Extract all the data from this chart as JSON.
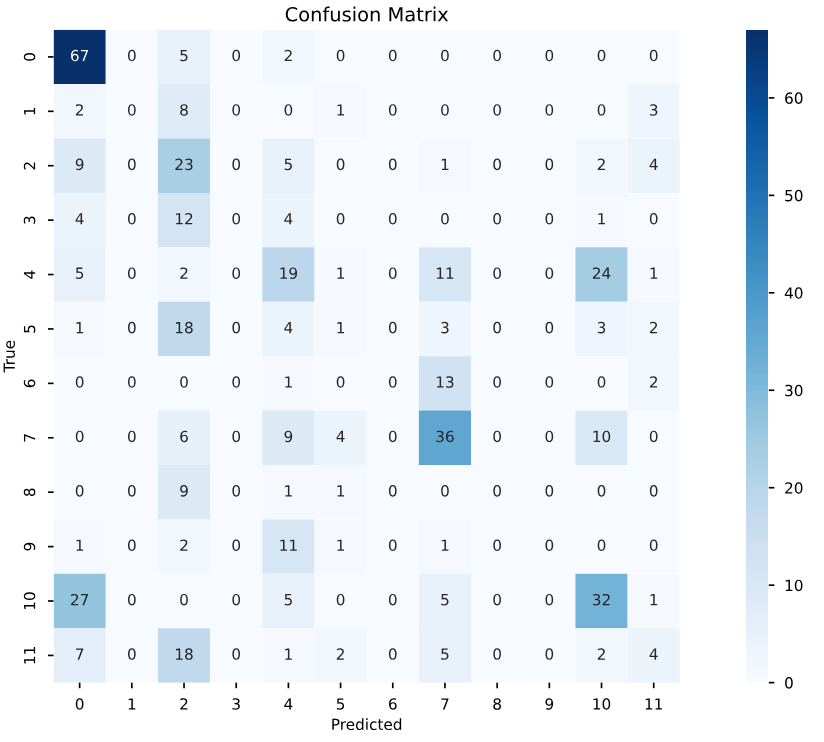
{
  "chart_data": {
    "type": "heatmap",
    "title": "Confusion Matrix",
    "xlabel": "Predicted",
    "ylabel": "True",
    "categories": [
      "0",
      "1",
      "2",
      "3",
      "4",
      "5",
      "6",
      "7",
      "8",
      "9",
      "10",
      "11"
    ],
    "y_categories": [
      "0",
      "1",
      "2",
      "3",
      "4",
      "5",
      "6",
      "7",
      "8",
      "9",
      "10",
      "11"
    ],
    "cells": [
      [
        67,
        0,
        5,
        0,
        2,
        0,
        0,
        0,
        0,
        0,
        0,
        0
      ],
      [
        2,
        0,
        8,
        0,
        0,
        1,
        0,
        0,
        0,
        0,
        0,
        3
      ],
      [
        9,
        0,
        23,
        0,
        5,
        0,
        0,
        1,
        0,
        0,
        2,
        4
      ],
      [
        4,
        0,
        12,
        0,
        4,
        0,
        0,
        0,
        0,
        0,
        1,
        0
      ],
      [
        5,
        0,
        2,
        0,
        19,
        1,
        0,
        11,
        0,
        0,
        24,
        1
      ],
      [
        1,
        0,
        18,
        0,
        4,
        1,
        0,
        3,
        0,
        0,
        3,
        2
      ],
      [
        0,
        0,
        0,
        0,
        1,
        0,
        0,
        13,
        0,
        0,
        0,
        2
      ],
      [
        0,
        0,
        6,
        0,
        9,
        4,
        0,
        36,
        0,
        0,
        10,
        0
      ],
      [
        0,
        0,
        9,
        0,
        1,
        1,
        0,
        0,
        0,
        0,
        0,
        0
      ],
      [
        1,
        0,
        2,
        0,
        11,
        1,
        0,
        1,
        0,
        0,
        0,
        0
      ],
      [
        27,
        0,
        0,
        0,
        5,
        0,
        0,
        5,
        0,
        0,
        32,
        1
      ],
      [
        7,
        0,
        18,
        0,
        1,
        2,
        0,
        5,
        0,
        0,
        2,
        4
      ]
    ],
    "clim": [
      0,
      67
    ],
    "cticks": [
      0,
      10,
      20,
      30,
      40,
      50,
      60
    ],
    "data_labels": true
  }
}
